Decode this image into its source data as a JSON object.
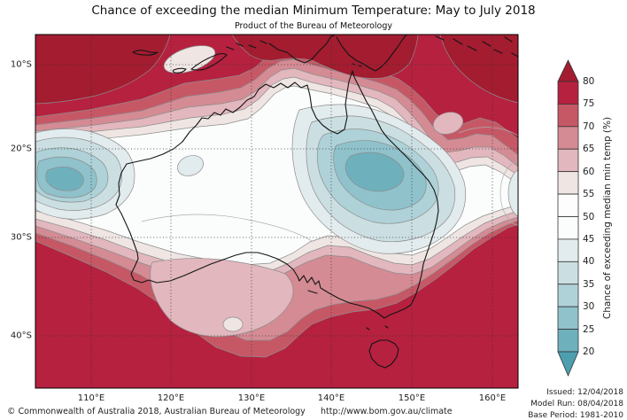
{
  "header": {
    "title": "Chance of exceeding the median Minimum Temperature: May to July 2018",
    "subtitle": "Product of the Bureau of Meteorology"
  },
  "footer": {
    "copyright": "© Commonwealth of Australia 2018, Australian Bureau of Meteorology",
    "url": "http://www.bom.gov.au/climate",
    "issued": "Issued: 12/04/2018",
    "model_run": "Model Run: 08/04/2018",
    "base_period": "Base Period: 1981-2010"
  },
  "map": {
    "lon_ticks": [
      "110°E",
      "120°E",
      "130°E",
      "140°E",
      "150°E",
      "160°E"
    ],
    "lat_ticks": [
      "10°S",
      "20°S",
      "30°S",
      "40°S"
    ]
  },
  "colorbar": {
    "label": "Chance of exceeding median min temp (%)",
    "tick_labels": [
      "80",
      "75",
      "70",
      "65",
      "60",
      "55",
      "50",
      "45",
      "40",
      "35",
      "30",
      "25",
      "20"
    ],
    "segment_colors_top_to_bottom": [
      "#b6213f",
      "#c65866",
      "#d48b94",
      "#e2b7bd",
      "#efe6e4",
      "#fdfdfd",
      "#fbfcfc",
      "#e2ebed",
      "#cbdfe2",
      "#aed2d8",
      "#8fc2cb",
      "#6fb0bd"
    ],
    "arrow_top_color": "#a31c30",
    "arrow_bottom_color": "#4d9fb0"
  },
  "palette": {
    "gt80": "#a31c30",
    "b75": "#b6213f",
    "b70": "#c65866",
    "b65": "#d48b94",
    "b60": "#e2b7bd",
    "b55": "#efe6e4",
    "b50": "#fdfdfd",
    "b45": "#fbfcfc",
    "b40": "#e2ebed",
    "b35": "#cbdfe2",
    "b30": "#aed2d8",
    "b25": "#8fc2cb",
    "b20": "#6fb0bd",
    "lt20": "#4d9fb0"
  },
  "chart_data": {
    "type": "heatmap",
    "variant": "filled-contour probability map over Australia (Mercator)",
    "title": "Chance of exceeding the median Minimum Temperature: May to July 2018",
    "subtitle": "Product of the Bureau of Meteorology",
    "x_axis": {
      "tick_labels": [
        "110°E",
        "120°E",
        "130°E",
        "140°E",
        "150°E",
        "160°E"
      ],
      "approx_range_deg_east": [
        103,
        163
      ]
    },
    "y_axis": {
      "tick_labels": [
        "10°S",
        "20°S",
        "30°S",
        "40°S"
      ],
      "approx_range_deg_south": [
        6,
        45
      ]
    },
    "colorbar": {
      "label": "Chance of exceeding median min temp (%)",
      "levels": [
        20,
        25,
        30,
        35,
        40,
        45,
        50,
        55,
        60,
        65,
        70,
        75,
        80
      ],
      "units": "percent",
      "orientation": "vertical-right",
      "extend": "both"
    },
    "grid": "dotted graticule every 10 degrees",
    "features": [
      {
        "region": "Far north (Indonesia, New Guinea, Solomon Sea, far tropical north)",
        "value_pct": "75 to >80"
      },
      {
        "region": "Band across northern Australia (Kimberley to Gulf of Carpentaria)",
        "value_pct": "55-75 decreasing southward"
      },
      {
        "region": "Pool offshore/onshore west coast WA centred near 109E 24S",
        "value_pct": "20-45 (core 20-25)"
      },
      {
        "region": "Large pool over inland Queensland centred near 143E 22S",
        "value_pct": "20-45 (core 20-25)"
      },
      {
        "region": "Central interior and east of ranges",
        "value_pct": "45-55 (near neutral)"
      },
      {
        "region": "Southern Australia, Bight, Tasman Sea, Tasmania",
        "value_pct": "70 to >80"
      },
      {
        "region": "Lighter tongue along south-west coastal WA with small pocket near 128E 35S",
        "value_pct": "55-65"
      }
    ]
  }
}
